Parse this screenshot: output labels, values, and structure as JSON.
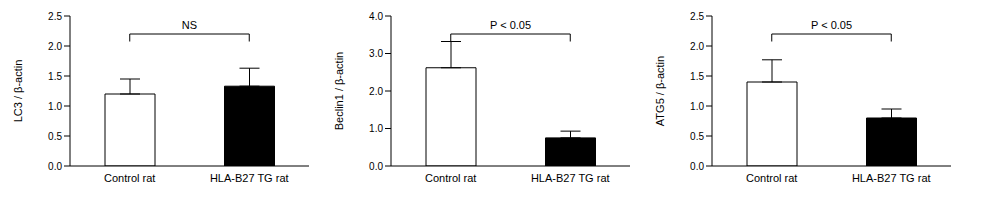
{
  "chart_data": [
    {
      "type": "bar",
      "ylabel": "LC3 / β-actin",
      "categories": [
        "Control rat",
        "HLA-B27 TG rat"
      ],
      "values": [
        1.2,
        1.33
      ],
      "error": [
        0.25,
        0.3
      ],
      "colors": [
        "#ffffff",
        "#000000"
      ],
      "ylim": [
        0,
        2.5
      ],
      "yticks": [
        {
          "value": 0,
          "label": "0.0"
        },
        0.5,
        {
          "value": 1,
          "label": "1.0"
        },
        1.5,
        {
          "value": 2,
          "label": "2.0"
        },
        2.5
      ],
      "annotation": "NS"
    },
    {
      "type": "bar",
      "ylabel": "Beclin1 / β-actin",
      "categories": [
        "Control rat",
        "HLA-B27 TG rat"
      ],
      "values": [
        2.62,
        0.75
      ],
      "error": [
        0.7,
        0.18
      ],
      "colors": [
        "#ffffff",
        "#000000"
      ],
      "ylim": [
        0,
        4
      ],
      "yticks": [
        {
          "value": 0,
          "label": "0.0"
        },
        {
          "value": 1,
          "label": "1.0"
        },
        {
          "value": 2,
          "label": "2.0"
        },
        {
          "value": 3,
          "label": "3.0"
        },
        {
          "value": 4,
          "label": "4.0"
        }
      ],
      "annotation": "P < 0.05"
    },
    {
      "type": "bar",
      "ylabel": "ATG5 / β-actin",
      "categories": [
        "Control rat",
        "HLA-B27 TG rat"
      ],
      "values": [
        1.4,
        0.8
      ],
      "error": [
        0.37,
        0.15
      ],
      "colors": [
        "#ffffff",
        "#000000"
      ],
      "ylim": [
        0,
        2.5
      ],
      "yticks": [
        {
          "value": 0,
          "label": "0.0"
        },
        0.5,
        {
          "value": 1,
          "label": "1.0"
        },
        1.5,
        {
          "value": 2,
          "label": "2.0"
        },
        2.5
      ],
      "annotation": "P < 0.05"
    }
  ]
}
